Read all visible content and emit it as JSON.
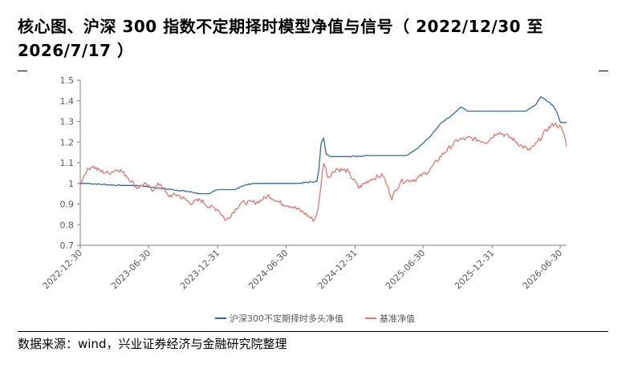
{
  "title": "核心图、沪深 300 指数不定期择时模型净值与信号（ 2022/12/30 至 2026/7/17 ）",
  "source": "数据来源：wind，兴业证券经济与金融研究院整理",
  "colors": {
    "series1": "#2e6da4",
    "series2": "#e8746e",
    "axis": "#7f7f7f",
    "text": "#595959"
  },
  "chart_data": {
    "type": "line",
    "title": "",
    "xlabel": "",
    "ylabel": "",
    "x_range": [
      "2022-12-30",
      "2026-07-17"
    ],
    "ylim": [
      0.7,
      1.5
    ],
    "y_ticks": [
      0.7,
      0.8,
      0.9,
      1,
      1.1,
      1.2,
      1.3,
      1.4,
      1.5
    ],
    "y_tick_labels": [
      "0.7",
      "0.8",
      "0.9",
      "1",
      "1.1",
      "1.2",
      "1.3",
      "1.4",
      "1.5"
    ],
    "x_ticks": [
      "2022-12-30",
      "2023-06-30",
      "2023-12-31",
      "2024-06-30",
      "2024-12-31",
      "2025-06-30",
      "2025-12-31",
      "2026-06-30"
    ],
    "grid": false,
    "legend_position": "bottom",
    "series": [
      {
        "name": "沪深300不定期择时多头净值",
        "color": "#2e6da4",
        "points": [
          [
            "2022-12-30",
            1.0
          ],
          [
            "2023-01-20",
            1.0
          ],
          [
            "2023-03-01",
            0.995
          ],
          [
            "2023-04-15",
            0.99
          ],
          [
            "2023-06-01",
            0.99
          ],
          [
            "2023-07-15",
            0.98
          ],
          [
            "2023-09-01",
            0.97
          ],
          [
            "2023-10-15",
            0.96
          ],
          [
            "2023-11-15",
            0.95
          ],
          [
            "2023-12-10",
            0.95
          ],
          [
            "2024-01-01",
            0.97
          ],
          [
            "2024-02-15",
            0.97
          ],
          [
            "2024-03-01",
            0.985
          ],
          [
            "2024-04-01",
            1.0
          ],
          [
            "2024-05-01",
            1.0
          ],
          [
            "2024-06-15",
            1.0
          ],
          [
            "2024-08-01",
            1.0
          ],
          [
            "2024-09-20",
            1.01
          ],
          [
            "2024-09-25",
            1.06
          ],
          [
            "2024-10-01",
            1.19
          ],
          [
            "2024-10-08",
            1.22
          ],
          [
            "2024-10-15",
            1.14
          ],
          [
            "2024-11-01",
            1.13
          ],
          [
            "2024-12-15",
            1.13
          ],
          [
            "2025-02-01",
            1.135
          ],
          [
            "2025-03-15",
            1.135
          ],
          [
            "2025-05-15",
            1.135
          ],
          [
            "2025-06-15",
            1.17
          ],
          [
            "2025-07-15",
            1.22
          ],
          [
            "2025-08-15",
            1.29
          ],
          [
            "2025-09-15",
            1.33
          ],
          [
            "2025-10-10",
            1.37
          ],
          [
            "2025-10-25",
            1.35
          ],
          [
            "2025-12-15",
            1.35
          ],
          [
            "2026-02-15",
            1.35
          ],
          [
            "2026-04-01",
            1.35
          ],
          [
            "2026-04-25",
            1.38
          ],
          [
            "2026-05-10",
            1.42
          ],
          [
            "2026-05-25",
            1.4
          ],
          [
            "2026-06-10",
            1.38
          ],
          [
            "2026-06-22",
            1.34
          ],
          [
            "2026-07-01",
            1.295
          ],
          [
            "2026-07-17",
            1.295
          ]
        ]
      },
      {
        "name": "基准净值",
        "color": "#e8746e",
        "points": [
          [
            "2022-12-30",
            1.0
          ],
          [
            "2023-01-15",
            1.06
          ],
          [
            "2023-01-31",
            1.085
          ],
          [
            "2023-02-20",
            1.06
          ],
          [
            "2023-03-15",
            1.05
          ],
          [
            "2023-04-10",
            1.07
          ],
          [
            "2023-05-01",
            1.04
          ],
          [
            "2023-05-30",
            0.98
          ],
          [
            "2023-06-20",
            0.995
          ],
          [
            "2023-07-10",
            0.97
          ],
          [
            "2023-07-31",
            1.0
          ],
          [
            "2023-08-20",
            0.94
          ],
          [
            "2023-09-15",
            0.945
          ],
          [
            "2023-10-20",
            0.905
          ],
          [
            "2023-11-15",
            0.92
          ],
          [
            "2023-12-10",
            0.885
          ],
          [
            "2024-01-01",
            0.875
          ],
          [
            "2024-01-22",
            0.82
          ],
          [
            "2024-02-10",
            0.86
          ],
          [
            "2024-03-01",
            0.905
          ],
          [
            "2024-04-15",
            0.91
          ],
          [
            "2024-05-15",
            0.94
          ],
          [
            "2024-06-15",
            0.905
          ],
          [
            "2024-07-15",
            0.89
          ],
          [
            "2024-08-15",
            0.86
          ],
          [
            "2024-09-13",
            0.82
          ],
          [
            "2024-09-24",
            0.88
          ],
          [
            "2024-10-08",
            1.105
          ],
          [
            "2024-10-20",
            1.03
          ],
          [
            "2024-11-10",
            1.07
          ],
          [
            "2024-12-10",
            1.06
          ],
          [
            "2025-01-10",
            0.98
          ],
          [
            "2025-02-10",
            1.02
          ],
          [
            "2025-03-15",
            1.04
          ],
          [
            "2025-04-08",
            0.93
          ],
          [
            "2025-05-01",
            1.01
          ],
          [
            "2025-06-10",
            1.02
          ],
          [
            "2025-07-15",
            1.06
          ],
          [
            "2025-08-20",
            1.14
          ],
          [
            "2025-09-30",
            1.21
          ],
          [
            "2025-11-01",
            1.22
          ],
          [
            "2025-12-15",
            1.2
          ],
          [
            "2026-01-15",
            1.25
          ],
          [
            "2026-02-20",
            1.22
          ],
          [
            "2026-03-20",
            1.18
          ],
          [
            "2026-04-10",
            1.16
          ],
          [
            "2026-05-01",
            1.2
          ],
          [
            "2026-05-25",
            1.26
          ],
          [
            "2026-06-15",
            1.29
          ],
          [
            "2026-07-01",
            1.27
          ],
          [
            "2026-07-10",
            1.24
          ],
          [
            "2026-07-17",
            1.18
          ]
        ]
      }
    ]
  }
}
